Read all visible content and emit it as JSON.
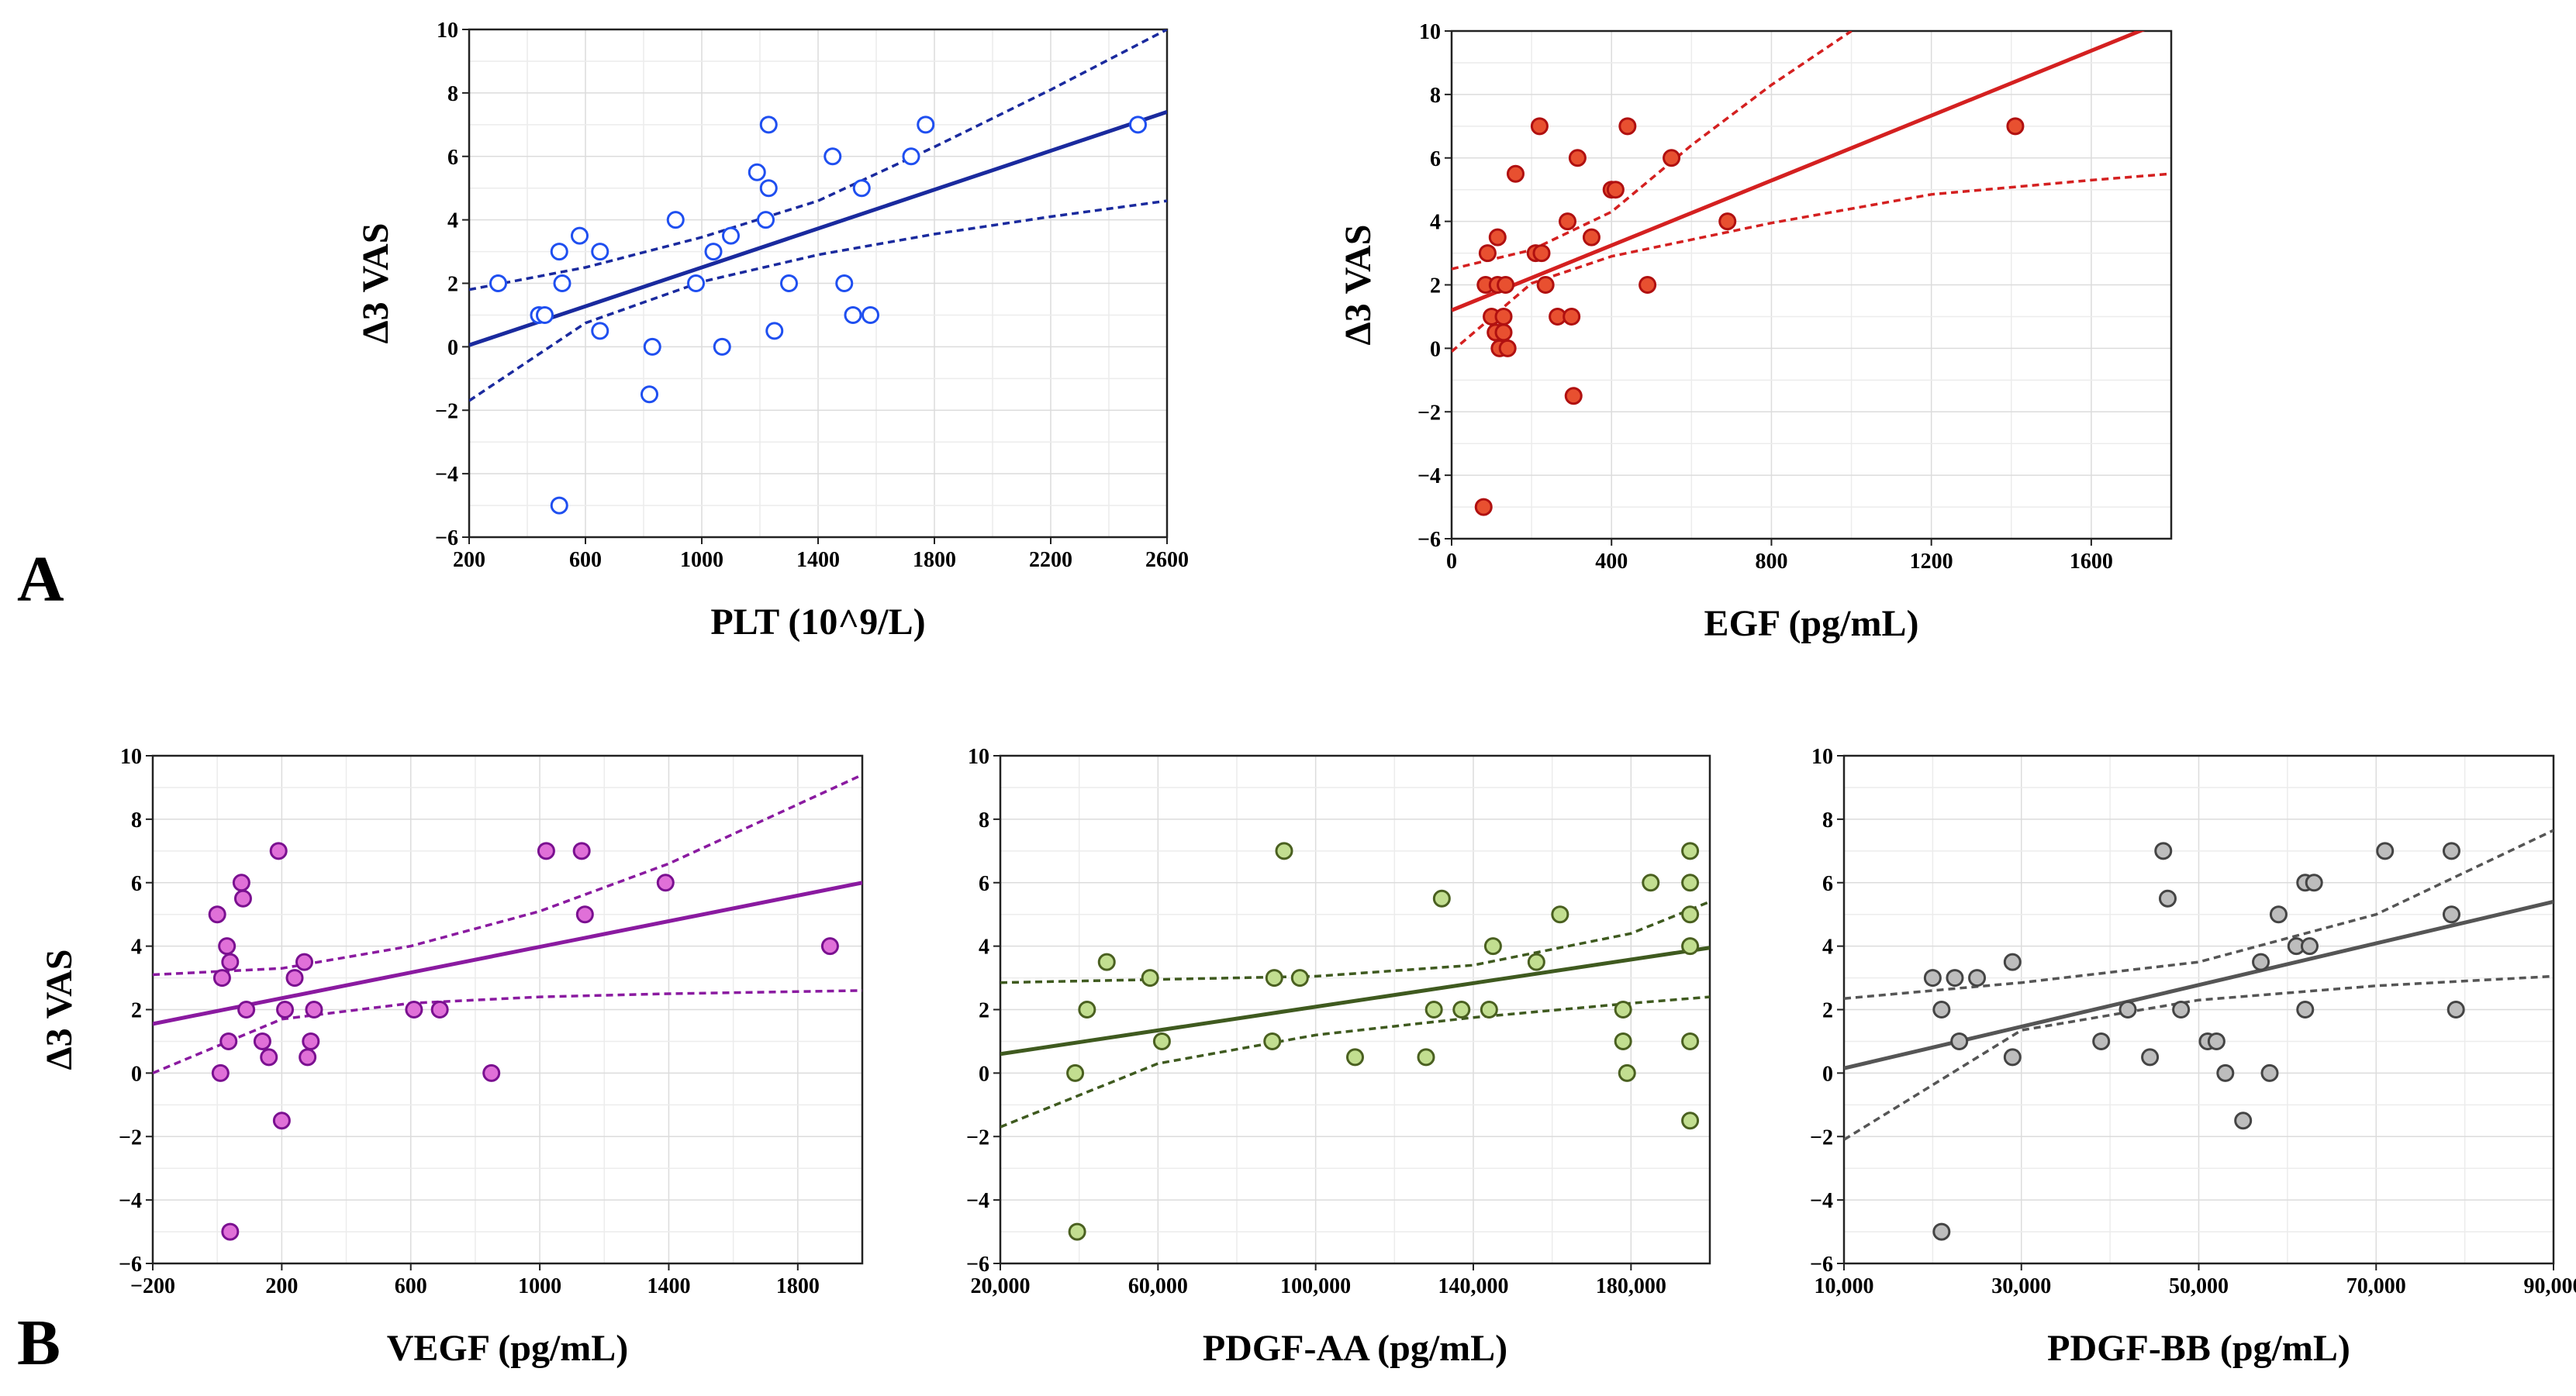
{
  "panel_labels": [
    "A",
    "B"
  ],
  "chart_data": [
    {
      "type": "scatter",
      "panel": "A",
      "xlabel": "PLT (10^9/L)",
      "ylabel": "Δ3 VAS",
      "xlim": [
        200,
        2600
      ],
      "ylim": [
        -6,
        10
      ],
      "xticks": [
        200,
        600,
        1000,
        1400,
        1800,
        2200,
        2600
      ],
      "xtick_labels": [
        "200",
        "600",
        "1000",
        "1400",
        "1800",
        "2200",
        "2600"
      ],
      "yticks": [
        -6,
        -4,
        -2,
        0,
        2,
        4,
        6,
        8,
        10
      ],
      "ytick_labels": [
        "−6",
        "−4",
        "−2",
        "0",
        "2",
        "4",
        "6",
        "8",
        "10"
      ],
      "color": "#1a2a9e",
      "point_fill": "#ffffff",
      "point_stroke": "#1f4ff0",
      "points": [
        [
          300,
          2
        ],
        [
          440,
          1
        ],
        [
          460,
          1
        ],
        [
          510,
          3
        ],
        [
          520,
          2
        ],
        [
          510,
          -5
        ],
        [
          580,
          3.5
        ],
        [
          650,
          3
        ],
        [
          650,
          0.5
        ],
        [
          820,
          -1.5
        ],
        [
          830,
          0
        ],
        [
          910,
          4
        ],
        [
          980,
          2
        ],
        [
          1040,
          3
        ],
        [
          1070,
          0
        ],
        [
          1100,
          3.5
        ],
        [
          1190,
          5.5
        ],
        [
          1220,
          4
        ],
        [
          1230,
          7
        ],
        [
          1230,
          5
        ],
        [
          1250,
          0.5
        ],
        [
          1300,
          2
        ],
        [
          1450,
          6
        ],
        [
          1490,
          2
        ],
        [
          1520,
          1
        ],
        [
          1550,
          5
        ],
        [
          1580,
          1
        ],
        [
          1720,
          6
        ],
        [
          1770,
          7
        ],
        [
          2500,
          7
        ]
      ],
      "fit": [
        [
          200,
          0.05
        ],
        [
          2600,
          7.4
        ]
      ],
      "ci_upper": [
        [
          200,
          1.8
        ],
        [
          600,
          2.5
        ],
        [
          1000,
          3.45
        ],
        [
          1400,
          4.6
        ],
        [
          1800,
          6.3
        ],
        [
          2200,
          8.1
        ],
        [
          2600,
          10
        ]
      ],
      "ci_lower": [
        [
          200,
          -1.7
        ],
        [
          600,
          0.75
        ],
        [
          1000,
          2.05
        ],
        [
          1400,
          2.9
        ],
        [
          1800,
          3.55
        ],
        [
          2200,
          4.1
        ],
        [
          2600,
          4.6
        ]
      ]
    },
    {
      "type": "scatter",
      "panel": "A",
      "xlabel": "EGF (pg/mL)",
      "ylabel": "Δ3 VAS",
      "xlim": [
        0,
        1800
      ],
      "ylim": [
        -6,
        10
      ],
      "xticks": [
        0,
        400,
        800,
        1200,
        1600
      ],
      "xtick_labels": [
        "0",
        "400",
        "800",
        "1200",
        "1600"
      ],
      "yticks": [
        -6,
        -4,
        -2,
        0,
        2,
        4,
        6,
        8,
        10
      ],
      "ytick_labels": [
        "−6",
        "−4",
        "−2",
        "0",
        "2",
        "4",
        "6",
        "8",
        "10"
      ],
      "color": "#d42020",
      "point_fill": "#e85030",
      "point_stroke": "#b01010",
      "points": [
        [
          80,
          -5
        ],
        [
          85,
          2
        ],
        [
          90,
          3
        ],
        [
          100,
          1
        ],
        [
          110,
          0.5
        ],
        [
          115,
          3.5
        ],
        [
          115,
          2
        ],
        [
          120,
          0
        ],
        [
          130,
          1
        ],
        [
          130,
          0.5
        ],
        [
          135,
          2
        ],
        [
          140,
          0
        ],
        [
          160,
          5.5
        ],
        [
          210,
          3
        ],
        [
          220,
          7
        ],
        [
          225,
          3
        ],
        [
          235,
          2
        ],
        [
          265,
          1
        ],
        [
          290,
          4
        ],
        [
          300,
          1
        ],
        [
          305,
          -1.5
        ],
        [
          315,
          6
        ],
        [
          350,
          3.5
        ],
        [
          400,
          5
        ],
        [
          410,
          5
        ],
        [
          440,
          7
        ],
        [
          490,
          2
        ],
        [
          550,
          6
        ],
        [
          690,
          4
        ],
        [
          1410,
          7
        ]
      ],
      "fit": [
        [
          0,
          1.2
        ],
        [
          1800,
          10.4
        ]
      ],
      "ci_upper": [
        [
          0,
          2.5
        ],
        [
          200,
          3.1
        ],
        [
          400,
          4.3
        ],
        [
          600,
          6.4
        ],
        [
          800,
          8.3
        ],
        [
          1000,
          10
        ]
      ],
      "ci_lower": [
        [
          0,
          -0.1
        ],
        [
          200,
          2.05
        ],
        [
          400,
          2.9
        ],
        [
          800,
          3.95
        ],
        [
          1200,
          4.85
        ],
        [
          1600,
          5.3
        ],
        [
          1800,
          5.5
        ]
      ]
    },
    {
      "type": "scatter",
      "panel": "B",
      "xlabel": "VEGF (pg/mL)",
      "ylabel": "Δ3 VAS",
      "xlim": [
        -200,
        2000
      ],
      "ylim": [
        -6,
        10
      ],
      "xticks": [
        -200,
        200,
        600,
        1000,
        1400,
        1800
      ],
      "xtick_labels": [
        "−200",
        "200",
        "600",
        "1000",
        "1400",
        "1800"
      ],
      "yticks": [
        -6,
        -4,
        -2,
        0,
        2,
        4,
        6,
        8,
        10
      ],
      "ytick_labels": [
        "−6",
        "−4",
        "−2",
        "0",
        "2",
        "4",
        "6",
        "8",
        "10"
      ],
      "color": "#8a1aa0",
      "point_fill": "#e070d8",
      "point_stroke": "#7a1090",
      "points": [
        [
          0,
          5
        ],
        [
          10,
          0
        ],
        [
          15,
          3
        ],
        [
          30,
          4
        ],
        [
          35,
          1
        ],
        [
          40,
          3.5
        ],
        [
          40,
          -5
        ],
        [
          75,
          6
        ],
        [
          80,
          5.5
        ],
        [
          90,
          2
        ],
        [
          140,
          1
        ],
        [
          160,
          0.5
        ],
        [
          190,
          7
        ],
        [
          200,
          -1.5
        ],
        [
          210,
          2
        ],
        [
          240,
          3
        ],
        [
          270,
          3.5
        ],
        [
          280,
          0.5
        ],
        [
          290,
          1
        ],
        [
          300,
          2
        ],
        [
          610,
          2
        ],
        [
          690,
          2
        ],
        [
          850,
          0
        ],
        [
          1020,
          7
        ],
        [
          1130,
          7
        ],
        [
          1140,
          5
        ],
        [
          1390,
          6
        ],
        [
          1900,
          4
        ]
      ],
      "fit": [
        [
          -200,
          1.55
        ],
        [
          2000,
          6.0
        ]
      ],
      "ci_upper": [
        [
          -200,
          3.1
        ],
        [
          200,
          3.3
        ],
        [
          600,
          4.0
        ],
        [
          1000,
          5.1
        ],
        [
          1400,
          6.6
        ],
        [
          2000,
          9.4
        ]
      ],
      "ci_lower": [
        [
          -200,
          0
        ],
        [
          200,
          1.7
        ],
        [
          600,
          2.2
        ],
        [
          1000,
          2.4
        ],
        [
          1400,
          2.5
        ],
        [
          2000,
          2.6
        ]
      ]
    },
    {
      "type": "scatter",
      "panel": "B",
      "xlabel": "PDGF-AA (pg/mL)",
      "ylabel": "",
      "xlim": [
        20000,
        200000
      ],
      "ylim": [
        -6,
        10
      ],
      "xticks": [
        20000,
        60000,
        100000,
        140000,
        180000
      ],
      "xtick_labels": [
        "20,000",
        "60,000",
        "100,000",
        "140,000",
        "180,000"
      ],
      "yticks": [
        -6,
        -4,
        -2,
        0,
        2,
        4,
        6,
        8,
        10
      ],
      "ytick_labels": [
        "−6",
        "−4",
        "−2",
        "0",
        "2",
        "4",
        "6",
        "8",
        "10"
      ],
      "color": "#3f5a1f",
      "point_fill": "#c2de90",
      "point_stroke": "#4a6020",
      "points": [
        [
          39000,
          0
        ],
        [
          39500,
          -5
        ],
        [
          42000,
          2
        ],
        [
          47000,
          3.5
        ],
        [
          58000,
          3
        ],
        [
          61000,
          1
        ],
        [
          89000,
          1
        ],
        [
          89500,
          3
        ],
        [
          92000,
          7
        ],
        [
          96000,
          3
        ],
        [
          110000,
          0.5
        ],
        [
          128000,
          0.5
        ],
        [
          130000,
          2
        ],
        [
          132000,
          5.5
        ],
        [
          137000,
          2
        ],
        [
          144000,
          2
        ],
        [
          145000,
          4
        ],
        [
          156000,
          3.5
        ],
        [
          162000,
          5
        ],
        [
          178000,
          1
        ],
        [
          178000,
          2
        ],
        [
          179000,
          0
        ],
        [
          185000,
          6
        ],
        [
          195000,
          7
        ],
        [
          195000,
          6
        ],
        [
          195000,
          5
        ],
        [
          195000,
          4
        ],
        [
          195000,
          1
        ],
        [
          195000,
          -1.5
        ]
      ],
      "fit": [
        [
          20000,
          0.6
        ],
        [
          200000,
          3.95
        ]
      ],
      "ci_upper": [
        [
          20000,
          2.85
        ],
        [
          60000,
          2.95
        ],
        [
          100000,
          3.05
        ],
        [
          140000,
          3.4
        ],
        [
          180000,
          4.4
        ],
        [
          200000,
          5.4
        ]
      ],
      "ci_lower": [
        [
          20000,
          -1.7
        ],
        [
          60000,
          0.3
        ],
        [
          100000,
          1.2
        ],
        [
          140000,
          1.75
        ],
        [
          180000,
          2.2
        ],
        [
          200000,
          2.4
        ]
      ]
    },
    {
      "type": "scatter",
      "panel": "B",
      "xlabel": "PDGF-BB (pg/mL)",
      "ylabel": "",
      "xlim": [
        10000,
        90000
      ],
      "ylim": [
        -6,
        10
      ],
      "xticks": [
        10000,
        30000,
        50000,
        70000,
        90000
      ],
      "xtick_labels": [
        "10,000",
        "30,000",
        "50,000",
        "70,000",
        "90,000"
      ],
      "yticks": [
        -6,
        -4,
        -2,
        0,
        2,
        4,
        6,
        8,
        10
      ],
      "ytick_labels": [
        "−6",
        "−4",
        "−2",
        "0",
        "2",
        "4",
        "6",
        "8",
        "10"
      ],
      "color": "#555555",
      "point_fill": "#bdbdbd",
      "point_stroke": "#444444",
      "points": [
        [
          20000,
          3
        ],
        [
          21000,
          -5
        ],
        [
          21000,
          2
        ],
        [
          22500,
          3
        ],
        [
          23000,
          1
        ],
        [
          25000,
          3
        ],
        [
          29000,
          3.5
        ],
        [
          29000,
          0.5
        ],
        [
          39000,
          1
        ],
        [
          42000,
          2
        ],
        [
          44500,
          0.5
        ],
        [
          46000,
          7
        ],
        [
          46500,
          5.5
        ],
        [
          48000,
          2
        ],
        [
          51000,
          1
        ],
        [
          52000,
          1
        ],
        [
          53000,
          0
        ],
        [
          55000,
          -1.5
        ],
        [
          57000,
          3.5
        ],
        [
          58000,
          0
        ],
        [
          59000,
          5
        ],
        [
          61000,
          4
        ],
        [
          62000,
          6
        ],
        [
          62000,
          2
        ],
        [
          62500,
          4
        ],
        [
          63000,
          6
        ],
        [
          71000,
          7
        ],
        [
          78500,
          7
        ],
        [
          78500,
          5
        ],
        [
          79000,
          2
        ]
      ],
      "fit": [
        [
          10000,
          0.15
        ],
        [
          90000,
          5.4
        ]
      ],
      "ci_upper": [
        [
          10000,
          2.35
        ],
        [
          30000,
          2.85
        ],
        [
          50000,
          3.5
        ],
        [
          70000,
          5.0
        ],
        [
          90000,
          7.65
        ]
      ],
      "ci_lower": [
        [
          10000,
          -2.1
        ],
        [
          30000,
          1.35
        ],
        [
          50000,
          2.3
        ],
        [
          70000,
          2.75
        ],
        [
          90000,
          3.05
        ]
      ]
    }
  ]
}
